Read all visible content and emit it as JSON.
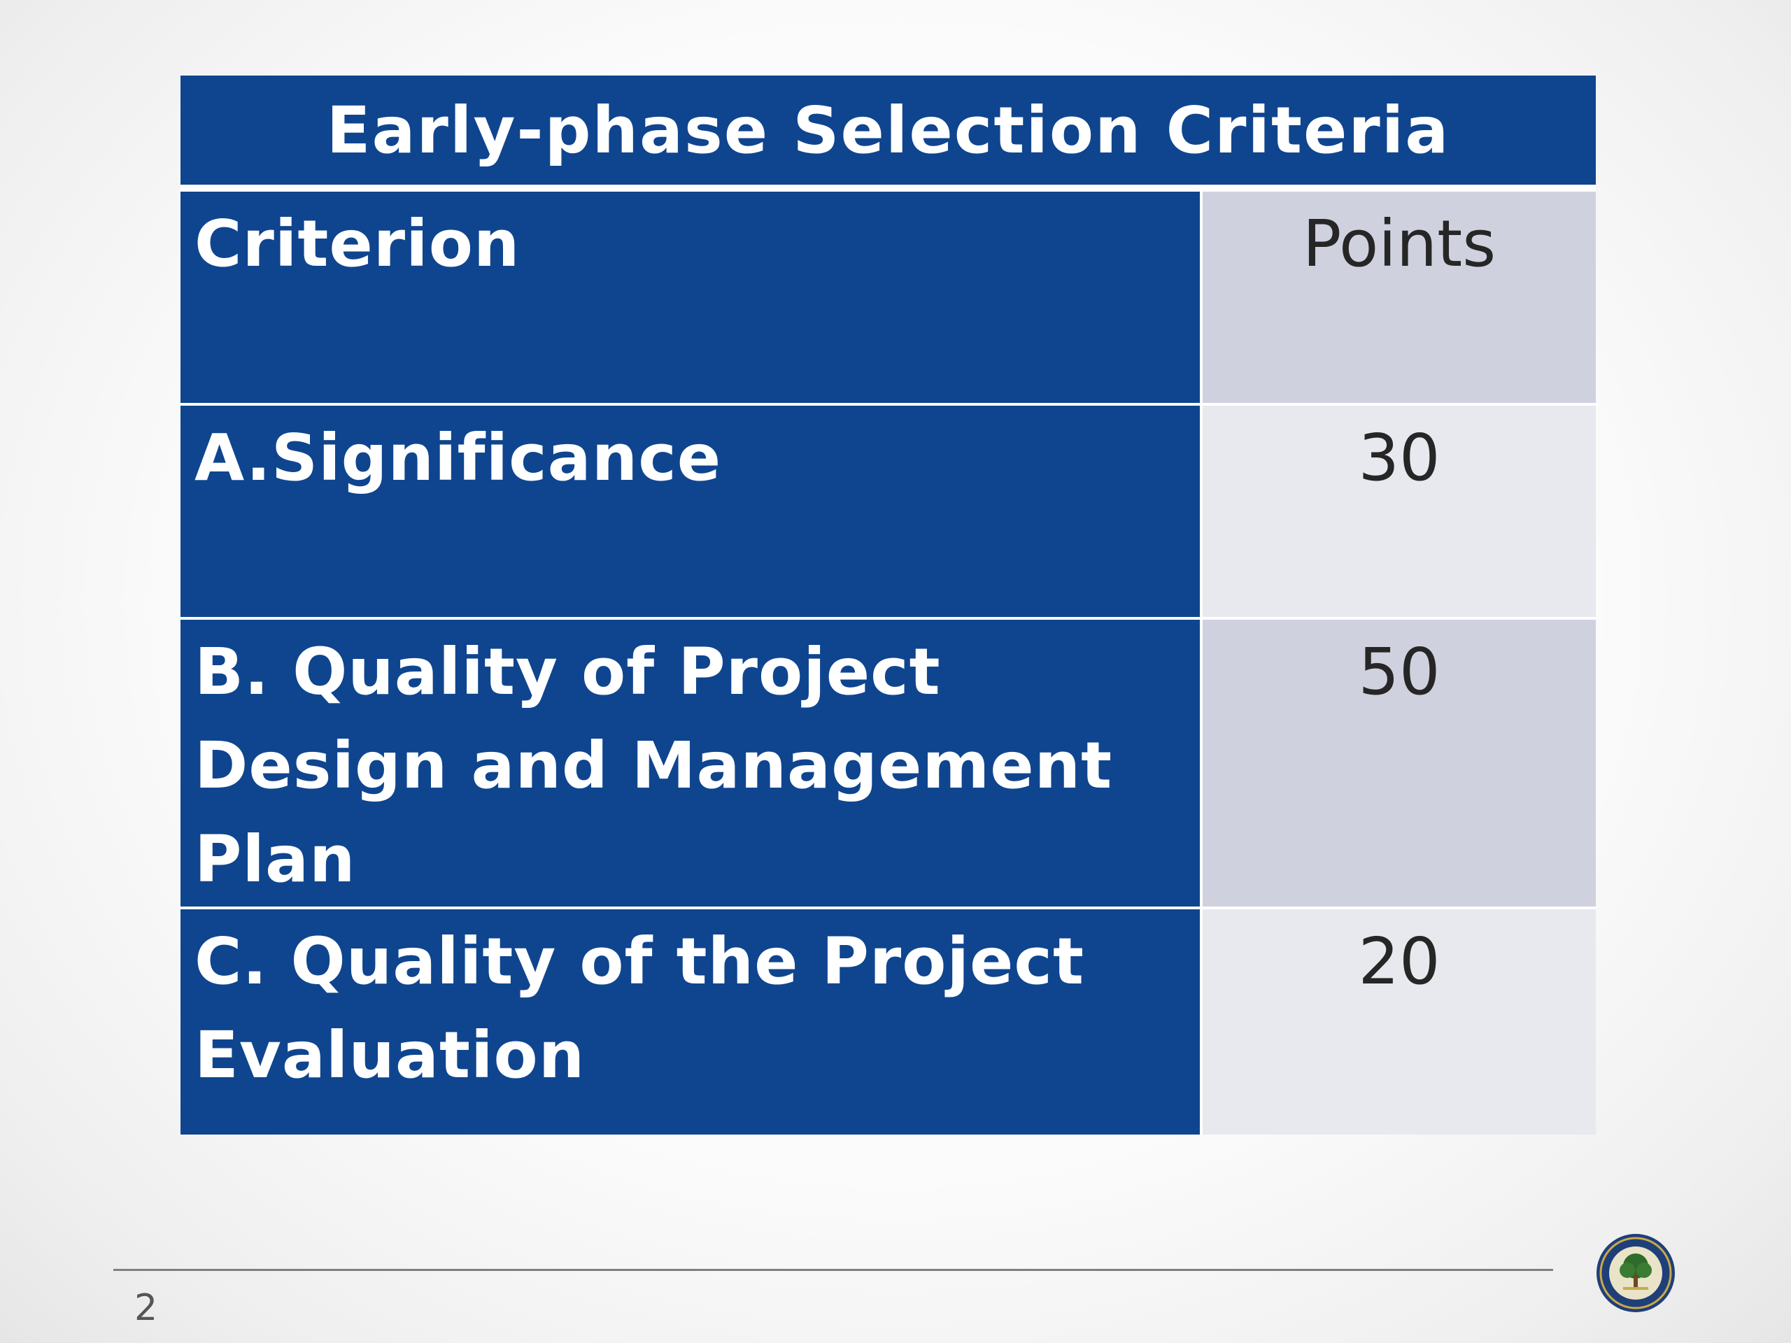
{
  "table": {
    "title": "Early-phase Selection Criteria",
    "header": {
      "criterion_label": "Criterion",
      "points_label": "Points"
    },
    "rows": [
      {
        "criterion": "A.Significance",
        "points": "30"
      },
      {
        "criterion": "B. Quality of Project Design and Management Plan",
        "points": "50"
      },
      {
        "criterion": "C. Quality of the Project Evaluation",
        "points": "20"
      }
    ]
  },
  "footer": {
    "page_number": "2",
    "logo_icon": "department-seal-icon"
  },
  "colors": {
    "header_blue": "#0f458f",
    "points_light": "#e8e9ef",
    "points_dark": "#cfd1de"
  }
}
